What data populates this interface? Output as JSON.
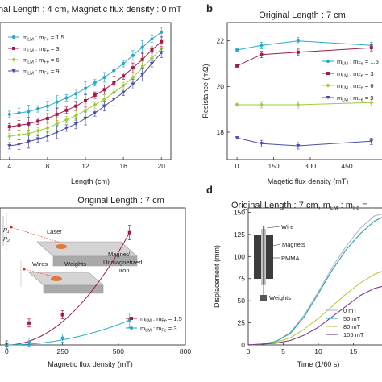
{
  "colors": {
    "s1_5": "#2ea8c9",
    "s3": "#a11c4a",
    "s6": "#9dcc3c",
    "s9": "#4b4fa8",
    "d0": "#b4b4c4",
    "d50": "#2e9fb0",
    "d80": "#bcc84c",
    "d105": "#7a3d8f"
  },
  "chart_data": [
    {
      "id": "a",
      "type": "line",
      "panel_label": "",
      "title": "nal Length : 4 cm, Magnetic flux density : 0 mT",
      "xlabel": "Length (cm)",
      "ylabel": "",
      "xlim": [
        3,
        21
      ],
      "ylim": [
        0,
        1
      ],
      "xticks": [
        "4",
        "8",
        "12",
        "16",
        "20"
      ],
      "series": [
        {
          "name": "m_LM : m_Fe = 1.5",
          "color_key": "s1_5",
          "x": [
            4,
            5,
            6,
            7,
            8,
            9,
            10,
            11,
            12,
            13,
            14,
            15,
            16,
            17,
            18,
            19,
            20
          ],
          "y": [
            0.33,
            0.34,
            0.35,
            0.37,
            0.39,
            0.42,
            0.45,
            0.48,
            0.52,
            0.56,
            0.6,
            0.65,
            0.7,
            0.76,
            0.82,
            0.88,
            0.93
          ]
        },
        {
          "name": "m_LM : m_Fe = 3",
          "color_key": "s3",
          "x": [
            4,
            5,
            6,
            7,
            8,
            9,
            10,
            11,
            12,
            13,
            14,
            15,
            16,
            17,
            18,
            19,
            20
          ],
          "y": [
            0.24,
            0.25,
            0.26,
            0.28,
            0.3,
            0.33,
            0.36,
            0.39,
            0.43,
            0.47,
            0.51,
            0.56,
            0.61,
            0.67,
            0.73,
            0.8,
            0.86
          ]
        },
        {
          "name": "m_LM : m_Fe = 6",
          "color_key": "s6",
          "x": [
            4,
            5,
            6,
            7,
            8,
            9,
            10,
            11,
            12,
            13,
            14,
            15,
            16,
            17,
            18,
            19,
            20
          ],
          "y": [
            0.17,
            0.18,
            0.19,
            0.21,
            0.23,
            0.26,
            0.29,
            0.32,
            0.36,
            0.4,
            0.44,
            0.49,
            0.54,
            0.6,
            0.67,
            0.74,
            0.81
          ]
        },
        {
          "name": "m_LM : m_Fe = 9",
          "color_key": "s9",
          "x": [
            4,
            5,
            6,
            7,
            8,
            9,
            10,
            11,
            12,
            13,
            14,
            15,
            16,
            17,
            18,
            19,
            20
          ],
          "y": [
            0.1,
            0.11,
            0.13,
            0.15,
            0.17,
            0.2,
            0.23,
            0.26,
            0.3,
            0.34,
            0.39,
            0.44,
            0.49,
            0.55,
            0.62,
            0.7,
            0.78
          ]
        }
      ]
    },
    {
      "id": "b",
      "type": "line",
      "panel_label": "b",
      "title": "Original Length : 7 cm",
      "xlabel": "Magetic flux density (mT)",
      "ylabel": "Resistance (mΩ)",
      "xlim": [
        -40,
        620
      ],
      "ylim": [
        16.8,
        22.8
      ],
      "xticks": [
        "0",
        "150",
        "300",
        "450"
      ],
      "yticks": [
        "18",
        "20",
        "22"
      ],
      "series": [
        {
          "name": "m_LM : m_Fe = 1.5",
          "color_key": "s1_5",
          "x": [
            0,
            100,
            250,
            550
          ],
          "y": [
            21.6,
            21.8,
            22.0,
            21.8
          ]
        },
        {
          "name": "m_LM : m_Fe = 3",
          "color_key": "s3",
          "x": [
            0,
            100,
            250,
            550
          ],
          "y": [
            20.9,
            21.4,
            21.5,
            21.7
          ]
        },
        {
          "name": "m_LM : m_Fe = 6",
          "color_key": "s6",
          "x": [
            0,
            100,
            250,
            550
          ],
          "y": [
            19.2,
            19.2,
            19.2,
            19.3
          ]
        },
        {
          "name": "m_LM : m_Fe = 9",
          "color_key": "s9",
          "x": [
            0,
            100,
            250,
            550
          ],
          "y": [
            17.75,
            17.5,
            17.4,
            17.6
          ]
        }
      ]
    },
    {
      "id": "c",
      "type": "scatter",
      "panel_label": "",
      "title": "Original Length : 7 cm",
      "xlabel": "Magnetic flux density (mT)",
      "ylabel": "",
      "xlim": [
        -30,
        800
      ],
      "ylim": [
        0,
        1
      ],
      "xticks": [
        "0",
        "250",
        "500",
        "800"
      ],
      "series": [
        {
          "name": "m_LM : m_Fe = 1.5",
          "color_key": "s3",
          "x": [
            0,
            100,
            250,
            550
          ],
          "y": [
            0.0,
            0.16,
            0.22,
            0.82
          ]
        },
        {
          "name": "m_LM : m_Fe = 3",
          "color_key": "s1_5",
          "x": [
            0,
            100,
            250,
            550
          ],
          "y": [
            0.0,
            0.02,
            0.05,
            0.18
          ]
        }
      ],
      "inset_labels": {
        "laser": "Laser",
        "wires": "Wires",
        "weights": "Weights",
        "magnet": "Magnet/",
        "unmagnetized": "Unmagnetized",
        "iron": "iron",
        "p1": "P₁",
        "p2": "P₂"
      }
    },
    {
      "id": "d",
      "type": "line",
      "panel_label": "d",
      "title": "Original Length : 7 cm, m",
      "title_sub1": "LM",
      "title_mid": " : m",
      "title_sub2": "Fe",
      "title_end": " =",
      "xlabel": "Time (1/60 s)",
      "ylabel": "Displacement (mm)",
      "xlim": [
        0,
        20
      ],
      "ylim": [
        0,
        155
      ],
      "xticks": [
        "0",
        "5",
        "10",
        "15"
      ],
      "yticks": [
        "0",
        "25",
        "50",
        "75",
        "100",
        "125",
        "150"
      ],
      "series": [
        {
          "name": "0 mT",
          "color_key": "d0",
          "x": [
            0,
            2,
            4,
            6,
            8,
            10,
            12,
            14,
            16,
            18,
            20
          ],
          "y": [
            0,
            1,
            4,
            14,
            34,
            60,
            88,
            112,
            132,
            146,
            150
          ]
        },
        {
          "name": "50 mT",
          "color_key": "d50",
          "x": [
            0,
            2,
            4,
            6,
            8,
            10,
            12,
            14,
            16,
            18,
            20
          ],
          "y": [
            0,
            1,
            4,
            13,
            32,
            58,
            85,
            108,
            126,
            140,
            148
          ]
        },
        {
          "name": "80 mT",
          "color_key": "d80",
          "x": [
            0,
            2,
            4,
            6,
            8,
            10,
            12,
            14,
            16,
            18,
            20
          ],
          "y": [
            0,
            1,
            3,
            8,
            18,
            30,
            44,
            58,
            70,
            80,
            86
          ]
        },
        {
          "name": "105 mT",
          "color_key": "d105",
          "x": [
            0,
            2,
            4,
            6,
            8,
            10,
            12,
            14,
            16,
            18,
            20
          ],
          "y": [
            0,
            1,
            2,
            5,
            11,
            20,
            32,
            44,
            56,
            64,
            68
          ]
        }
      ],
      "inset_labels": {
        "wire": "Wire",
        "magnets": "Magnets",
        "pmma": "PMMA",
        "weights": "Weights"
      }
    }
  ]
}
